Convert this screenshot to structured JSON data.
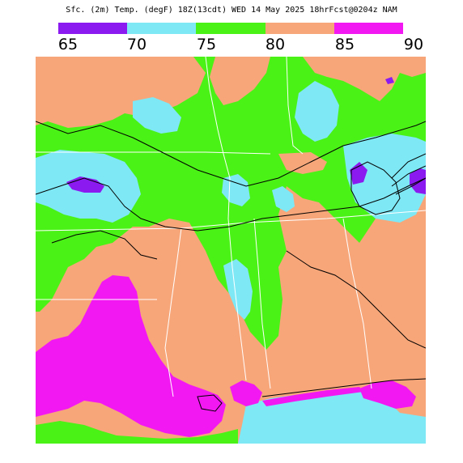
{
  "title": "Sfc. (2m) Temp. (degF) 18Z(13cdt) WED 14 May 2025 18hrFcst@0204z NAM",
  "legend": {
    "colors": [
      {
        "name": "purple",
        "hex": "#8A1AF0"
      },
      {
        "name": "cyan",
        "hex": "#7FE8F5"
      },
      {
        "name": "green",
        "hex": "#4AF215"
      },
      {
        "name": "tan",
        "hex": "#F7A67A"
      },
      {
        "name": "magenta",
        "hex": "#F218F2"
      }
    ],
    "labels": [
      "65",
      "70",
      "75",
      "80",
      "85",
      "90"
    ]
  },
  "map_colors": {
    "purple": "#8A1AF0",
    "cyan": "#7FE8F5",
    "green": "#4AF215",
    "tan": "#F7A67A",
    "magenta": "#F218F2",
    "contour": "#000000",
    "border": "#ffffff"
  }
}
